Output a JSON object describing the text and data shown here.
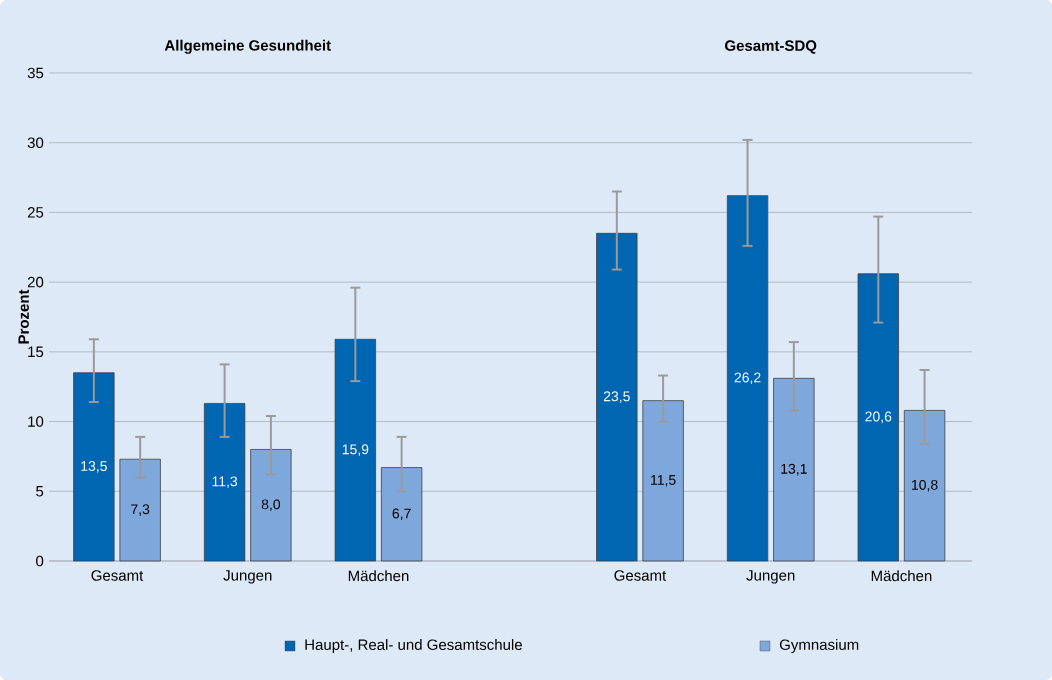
{
  "chart_data": {
    "type": "bar",
    "annotations": [
      "Allgemeine Gesundheit",
      "Gesamt-SDQ"
    ],
    "ylabel": "Prozent",
    "categories": [
      "Gesamt",
      "Jungen",
      "Mädchen",
      null,
      "Gesamt",
      "Jungen",
      "Mädchen"
    ],
    "series": [
      {
        "name": "Haupt-, Real- und Gesamtschule",
        "color": "#0066b2",
        "values": [
          13.5,
          11.3,
          15.9,
          null,
          23.5,
          26.2,
          20.6
        ],
        "value_labels": [
          "13,5",
          "11,3",
          "15,9",
          null,
          "23,5",
          "26,2",
          "20,6"
        ],
        "errors": [
          [
            11.4,
            15.9
          ],
          [
            8.9,
            14.1
          ],
          [
            12.9,
            19.6
          ],
          null,
          [
            20.9,
            26.5
          ],
          [
            22.6,
            30.2
          ],
          [
            17.1,
            24.7
          ]
        ]
      },
      {
        "name": "Gymnasium",
        "color": "#7ea7dc",
        "values": [
          7.3,
          8.0,
          6.7,
          null,
          11.5,
          13.1,
          10.8
        ],
        "value_labels": [
          "7,3",
          "8,0",
          "6,7",
          null,
          "11,5",
          "13,1",
          "10,8"
        ],
        "errors": [
          [
            6.0,
            8.9
          ],
          [
            6.2,
            10.4
          ],
          [
            5.0,
            8.9
          ],
          null,
          [
            10.0,
            13.3
          ],
          [
            10.8,
            15.7
          ],
          [
            8.4,
            13.7
          ]
        ]
      }
    ],
    "ylim": [
      0,
      35
    ],
    "yticks": [
      0,
      5,
      10,
      15,
      20,
      25,
      30,
      35
    ],
    "grid": "y",
    "legend": "bottom"
  }
}
